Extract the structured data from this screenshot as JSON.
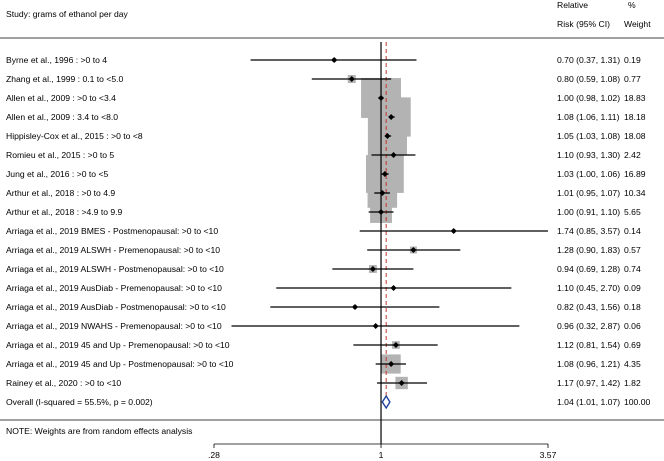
{
  "header": {
    "study_label": "Study: grams of ethanol per day",
    "rr_label_line1": "Relative",
    "rr_label_line2": "Risk (95% CI)",
    "weight_label_line1": "%",
    "weight_label_line2": "Weight"
  },
  "note": "NOTE: Weights are from random effects analysis",
  "colors": {
    "weight_box": "#b3b3b3",
    "reference_line": "#000000",
    "overall_line": "#c0392b",
    "diamond": "#1f3f9f"
  },
  "chart_data": {
    "type": "forest",
    "x_scale": "log",
    "xlim": [
      0.28,
      3.57
    ],
    "x_ticks": [
      ".28",
      "1",
      "3.57"
    ],
    "x_tick_values": [
      0.28,
      1,
      3.57
    ],
    "null_value": 1,
    "rows": [
      {
        "study": "Byrne et al., 1996 : >0 to 4",
        "rr": 0.7,
        "lo": 0.37,
        "hi": 1.31,
        "ci": "0.70 (0.37, 1.31)",
        "weight": 0.19,
        "weight_label": "0.19"
      },
      {
        "study": "Zhang et al., 1999 : 0.1 to <5.0",
        "rr": 0.8,
        "lo": 0.59,
        "hi": 1.08,
        "ci": "0.80 (0.59, 1.08)",
        "weight": 0.77,
        "weight_label": "0.77"
      },
      {
        "study": "Allen et al., 2009 : >0 to <3.4",
        "rr": 1.0,
        "lo": 0.98,
        "hi": 1.02,
        "ci": "1.00 (0.98, 1.02)",
        "weight": 18.83,
        "weight_label": "18.83"
      },
      {
        "study": "Allen et al., 2009 : 3.4 to <8.0",
        "rr": 1.08,
        "lo": 1.06,
        "hi": 1.11,
        "ci": "1.08 (1.06, 1.11)",
        "weight": 18.18,
        "weight_label": "18.18"
      },
      {
        "study": "Hippisley-Cox et al., 2015 : >0 to <8",
        "rr": 1.05,
        "lo": 1.03,
        "hi": 1.08,
        "ci": "1.05 (1.03, 1.08)",
        "weight": 18.08,
        "weight_label": "18.08"
      },
      {
        "study": "Romieu et al., 2015 : >0 to 5",
        "rr": 1.1,
        "lo": 0.93,
        "hi": 1.3,
        "ci": "1.10 (0.93, 1.30)",
        "weight": 2.42,
        "weight_label": "2.42"
      },
      {
        "study": "Jung et al., 2016 : >0 to <5",
        "rr": 1.03,
        "lo": 1.0,
        "hi": 1.06,
        "ci": "1.03 (1.00, 1.06)",
        "weight": 16.89,
        "weight_label": "16.89"
      },
      {
        "study": "Arthur et al., 2018 : >0 to 4.9",
        "rr": 1.01,
        "lo": 0.95,
        "hi": 1.07,
        "ci": "1.01 (0.95, 1.07)",
        "weight": 10.34,
        "weight_label": "10.34"
      },
      {
        "study": "Arthur et al., 2018 : >4.9 to 9.9",
        "rr": 1.0,
        "lo": 0.91,
        "hi": 1.1,
        "ci": "1.00 (0.91, 1.10)",
        "weight": 5.65,
        "weight_label": "5.65"
      },
      {
        "study": "Arriaga et al., 2019 BMES - Postmenopausal: >0 to <10",
        "rr": 1.74,
        "lo": 0.85,
        "hi": 3.57,
        "ci": "1.74 (0.85, 3.57)",
        "weight": 0.14,
        "weight_label": "0.14"
      },
      {
        "study": "Arriaga et al., 2019 ALSWH - Premenopausal: >0 to <10",
        "rr": 1.28,
        "lo": 0.9,
        "hi": 1.83,
        "ci": "1.28 (0.90, 1.83)",
        "weight": 0.57,
        "weight_label": "0.57"
      },
      {
        "study": "Arriaga et al., 2019 ALSWH - Postmenopausal: >0 to <10",
        "rr": 0.94,
        "lo": 0.69,
        "hi": 1.28,
        "ci": "0.94 (0.69, 1.28)",
        "weight": 0.74,
        "weight_label": "0.74"
      },
      {
        "study": "Arriaga et al., 2019 AusDiab - Premenopausal: >0 to <10",
        "rr": 1.1,
        "lo": 0.45,
        "hi": 2.7,
        "ci": "1.10 (0.45, 2.70)",
        "weight": 0.09,
        "weight_label": "0.09"
      },
      {
        "study": "Arriaga et al., 2019 AusDiab - Postmenopausal: >0 to <10",
        "rr": 0.82,
        "lo": 0.43,
        "hi": 1.56,
        "ci": "0.82 (0.43, 1.56)",
        "weight": 0.18,
        "weight_label": "0.18"
      },
      {
        "study": "Arriaga et al., 2019 NWAHS - Premenopausal: >0 to <10",
        "rr": 0.96,
        "lo": 0.32,
        "hi": 2.87,
        "ci": "0.96 (0.32, 2.87)",
        "weight": 0.06,
        "weight_label": "0.06"
      },
      {
        "study": "Arriaga et al., 2019 45 and Up - Premenopausal: >0 to <10",
        "rr": 1.12,
        "lo": 0.81,
        "hi": 1.54,
        "ci": "1.12 (0.81, 1.54)",
        "weight": 0.69,
        "weight_label": "0.69"
      },
      {
        "study": "Arriaga et al., 2019 45 and Up - Postmenopausal: >0 to <10",
        "rr": 1.08,
        "lo": 0.96,
        "hi": 1.21,
        "ci": "1.08 (0.96, 1.21)",
        "weight": 4.35,
        "weight_label": "4.35"
      },
      {
        "study": "Rainey et al., 2020 : >0 to <10",
        "rr": 1.17,
        "lo": 0.97,
        "hi": 1.42,
        "ci": "1.17 (0.97, 1.42)",
        "weight": 1.82,
        "weight_label": "1.82"
      }
    ],
    "overall": {
      "label": "Overall  (I-squared = 55.5%, p = 0.002)",
      "rr": 1.04,
      "lo": 1.01,
      "hi": 1.07,
      "ci": "1.04 (1.01, 1.07)",
      "weight_label": "100.00"
    }
  }
}
